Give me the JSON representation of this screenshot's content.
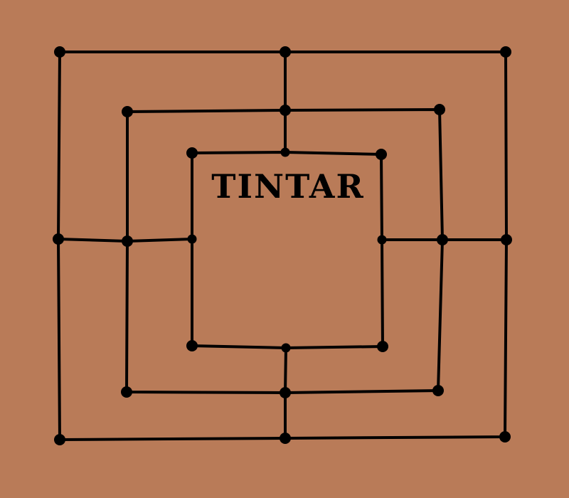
{
  "game": {
    "title": "TINTAR",
    "background_color": "#b97b58",
    "line_color": "#000000",
    "point_color": "#000000"
  },
  "board": {
    "squares": [
      "outer",
      "middle",
      "inner"
    ],
    "points": [
      {
        "id": "outer-top-left",
        "square": "outer",
        "pos": "top-left"
      },
      {
        "id": "outer-top-mid",
        "square": "outer",
        "pos": "top-mid"
      },
      {
        "id": "outer-top-right",
        "square": "outer",
        "pos": "top-right"
      },
      {
        "id": "outer-mid-left",
        "square": "outer",
        "pos": "mid-left"
      },
      {
        "id": "outer-mid-right",
        "square": "outer",
        "pos": "mid-right"
      },
      {
        "id": "outer-bottom-left",
        "square": "outer",
        "pos": "bottom-left"
      },
      {
        "id": "outer-bottom-mid",
        "square": "outer",
        "pos": "bottom-mid"
      },
      {
        "id": "outer-bottom-right",
        "square": "outer",
        "pos": "bottom-right"
      },
      {
        "id": "middle-top-left",
        "square": "middle",
        "pos": "top-left"
      },
      {
        "id": "middle-top-mid",
        "square": "middle",
        "pos": "top-mid"
      },
      {
        "id": "middle-top-right",
        "square": "middle",
        "pos": "top-right"
      },
      {
        "id": "middle-mid-left",
        "square": "middle",
        "pos": "mid-left"
      },
      {
        "id": "middle-mid-right",
        "square": "middle",
        "pos": "mid-right"
      },
      {
        "id": "middle-bottom-left",
        "square": "middle",
        "pos": "bottom-left"
      },
      {
        "id": "middle-bottom-mid",
        "square": "middle",
        "pos": "bottom-mid"
      },
      {
        "id": "middle-bottom-right",
        "square": "middle",
        "pos": "bottom-right"
      },
      {
        "id": "inner-top-left",
        "square": "inner",
        "pos": "top-left"
      },
      {
        "id": "inner-top-mid",
        "square": "inner",
        "pos": "top-mid"
      },
      {
        "id": "inner-top-right",
        "square": "inner",
        "pos": "top-right"
      },
      {
        "id": "inner-mid-left",
        "square": "inner",
        "pos": "mid-left"
      },
      {
        "id": "inner-mid-right",
        "square": "inner",
        "pos": "mid-right"
      },
      {
        "id": "inner-bottom-left",
        "square": "inner",
        "pos": "bottom-left"
      },
      {
        "id": "inner-bottom-mid",
        "square": "inner",
        "pos": "bottom-mid"
      },
      {
        "id": "inner-bottom-right",
        "square": "inner",
        "pos": "bottom-right"
      }
    ]
  }
}
